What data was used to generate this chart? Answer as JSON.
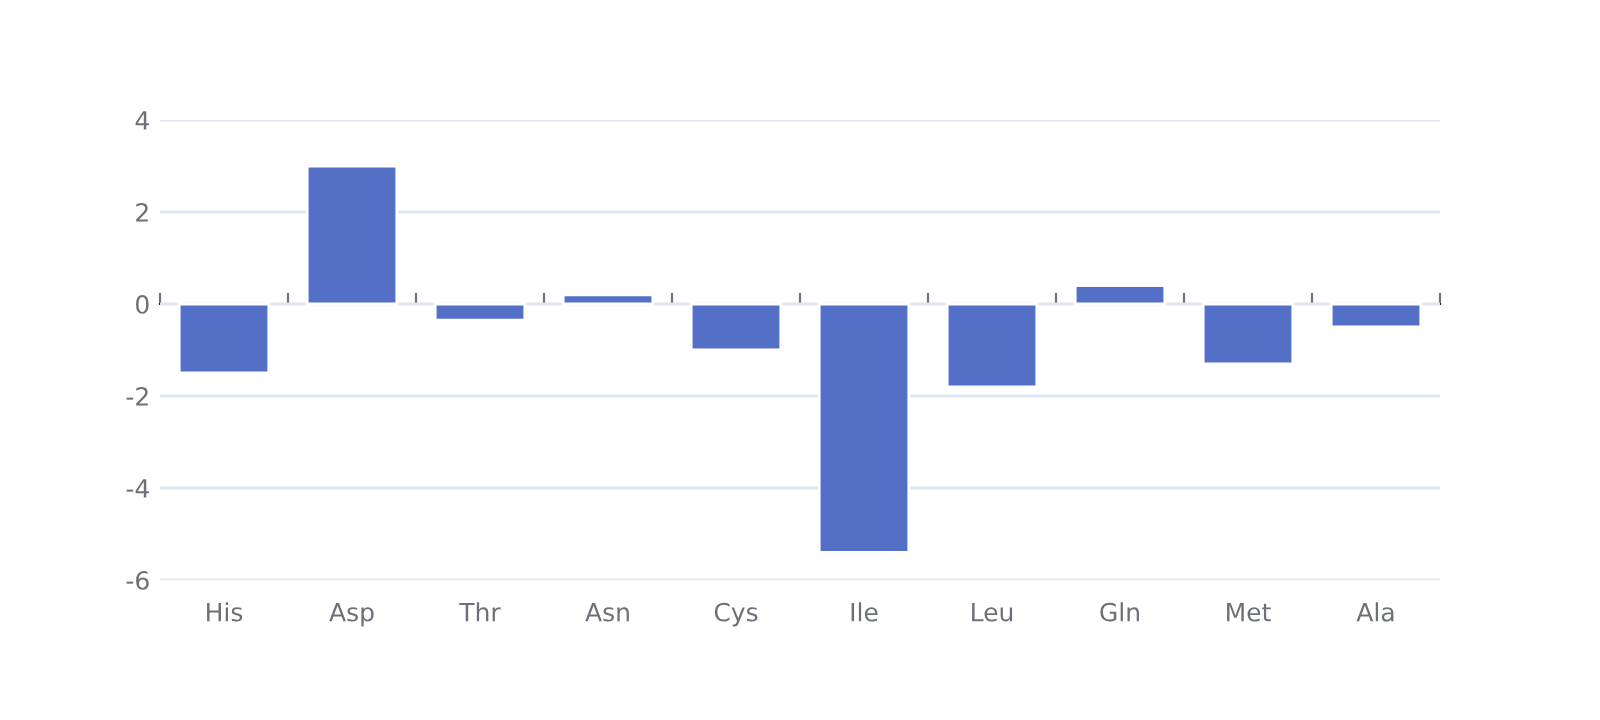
{
  "chart_data": {
    "type": "bar",
    "categories": [
      "His",
      "Asp",
      "Thr",
      "Asn",
      "Cys",
      "Ile",
      "Leu",
      "Gln",
      "Met",
      "Ala"
    ],
    "values": [
      -1.5,
      3.0,
      -0.35,
      0.2,
      -1.0,
      -5.4,
      -1.8,
      0.4,
      -1.3,
      -0.5
    ],
    "color": "#5470c6",
    "ylim": [
      -6,
      4
    ],
    "yticks": [
      -6,
      -4,
      -2,
      0,
      2,
      4
    ],
    "grid": "y"
  }
}
